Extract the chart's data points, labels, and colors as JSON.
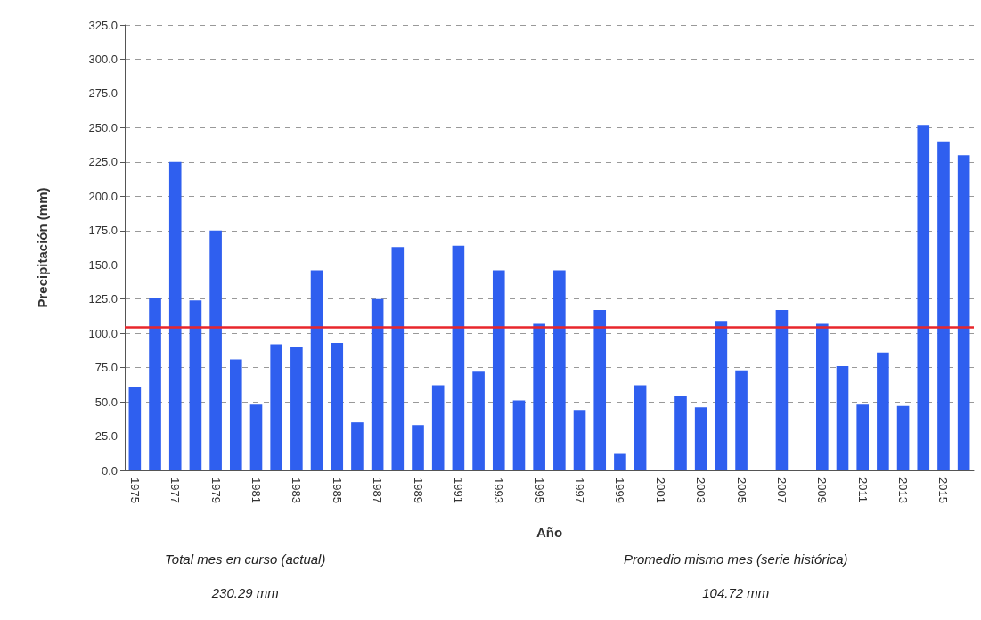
{
  "chart_data": {
    "type": "bar",
    "xlabel": "Año",
    "ylabel": "Precipitación (mm)",
    "categories": [
      "1975",
      null,
      "1977",
      null,
      "1979",
      null,
      "1981",
      null,
      "1983",
      null,
      "1985",
      null,
      "1987",
      null,
      "1989",
      null,
      "1991",
      null,
      "1993",
      null,
      "1995",
      null,
      "1997",
      null,
      "1999",
      null,
      "2001",
      null,
      "2003",
      null,
      "2005",
      null,
      "2007",
      null,
      "2009",
      null,
      "2011",
      null,
      "2013",
      null,
      "2015",
      null
    ],
    "values": [
      61,
      126,
      225,
      124,
      175,
      81,
      48,
      92,
      90,
      146,
      93,
      35,
      125,
      163,
      33,
      62,
      164,
      72,
      146,
      51,
      107,
      146,
      44,
      117,
      12,
      62,
      0,
      54,
      46,
      109,
      73,
      0,
      117,
      0,
      107,
      76,
      48,
      86,
      47,
      252,
      240,
      230
    ],
    "color": "#2f5fef",
    "ylim": [
      0,
      325
    ],
    "yticks": [
      {
        "value": 0,
        "label": "0.0"
      },
      {
        "value": 25,
        "label": "25.0"
      },
      {
        "value": 50,
        "label": "50.0"
      },
      {
        "value": 75,
        "label": "75.0"
      },
      {
        "value": 100,
        "label": "100.0"
      },
      {
        "value": 125,
        "label": "125.0"
      },
      {
        "value": 150,
        "label": "150.0"
      },
      {
        "value": 175,
        "label": "175.0"
      },
      {
        "value": 200,
        "label": "200.0"
      },
      {
        "value": 225,
        "label": "225.0"
      },
      {
        "value": 250,
        "label": "250.0"
      },
      {
        "value": 275,
        "label": "275.0"
      },
      {
        "value": 300,
        "label": "300.0"
      },
      {
        "value": 325,
        "label": "325.0"
      }
    ],
    "grid": "y",
    "ref_lines": [
      {
        "axis": "y",
        "value": 104.72,
        "color": "#e8262b",
        "line_style": "solid"
      }
    ],
    "annotations": [
      "Total mes en curso (actual)",
      "Promedio mismo mes (serie histórica)",
      "230.29 mm",
      "104.72 mm"
    ]
  }
}
